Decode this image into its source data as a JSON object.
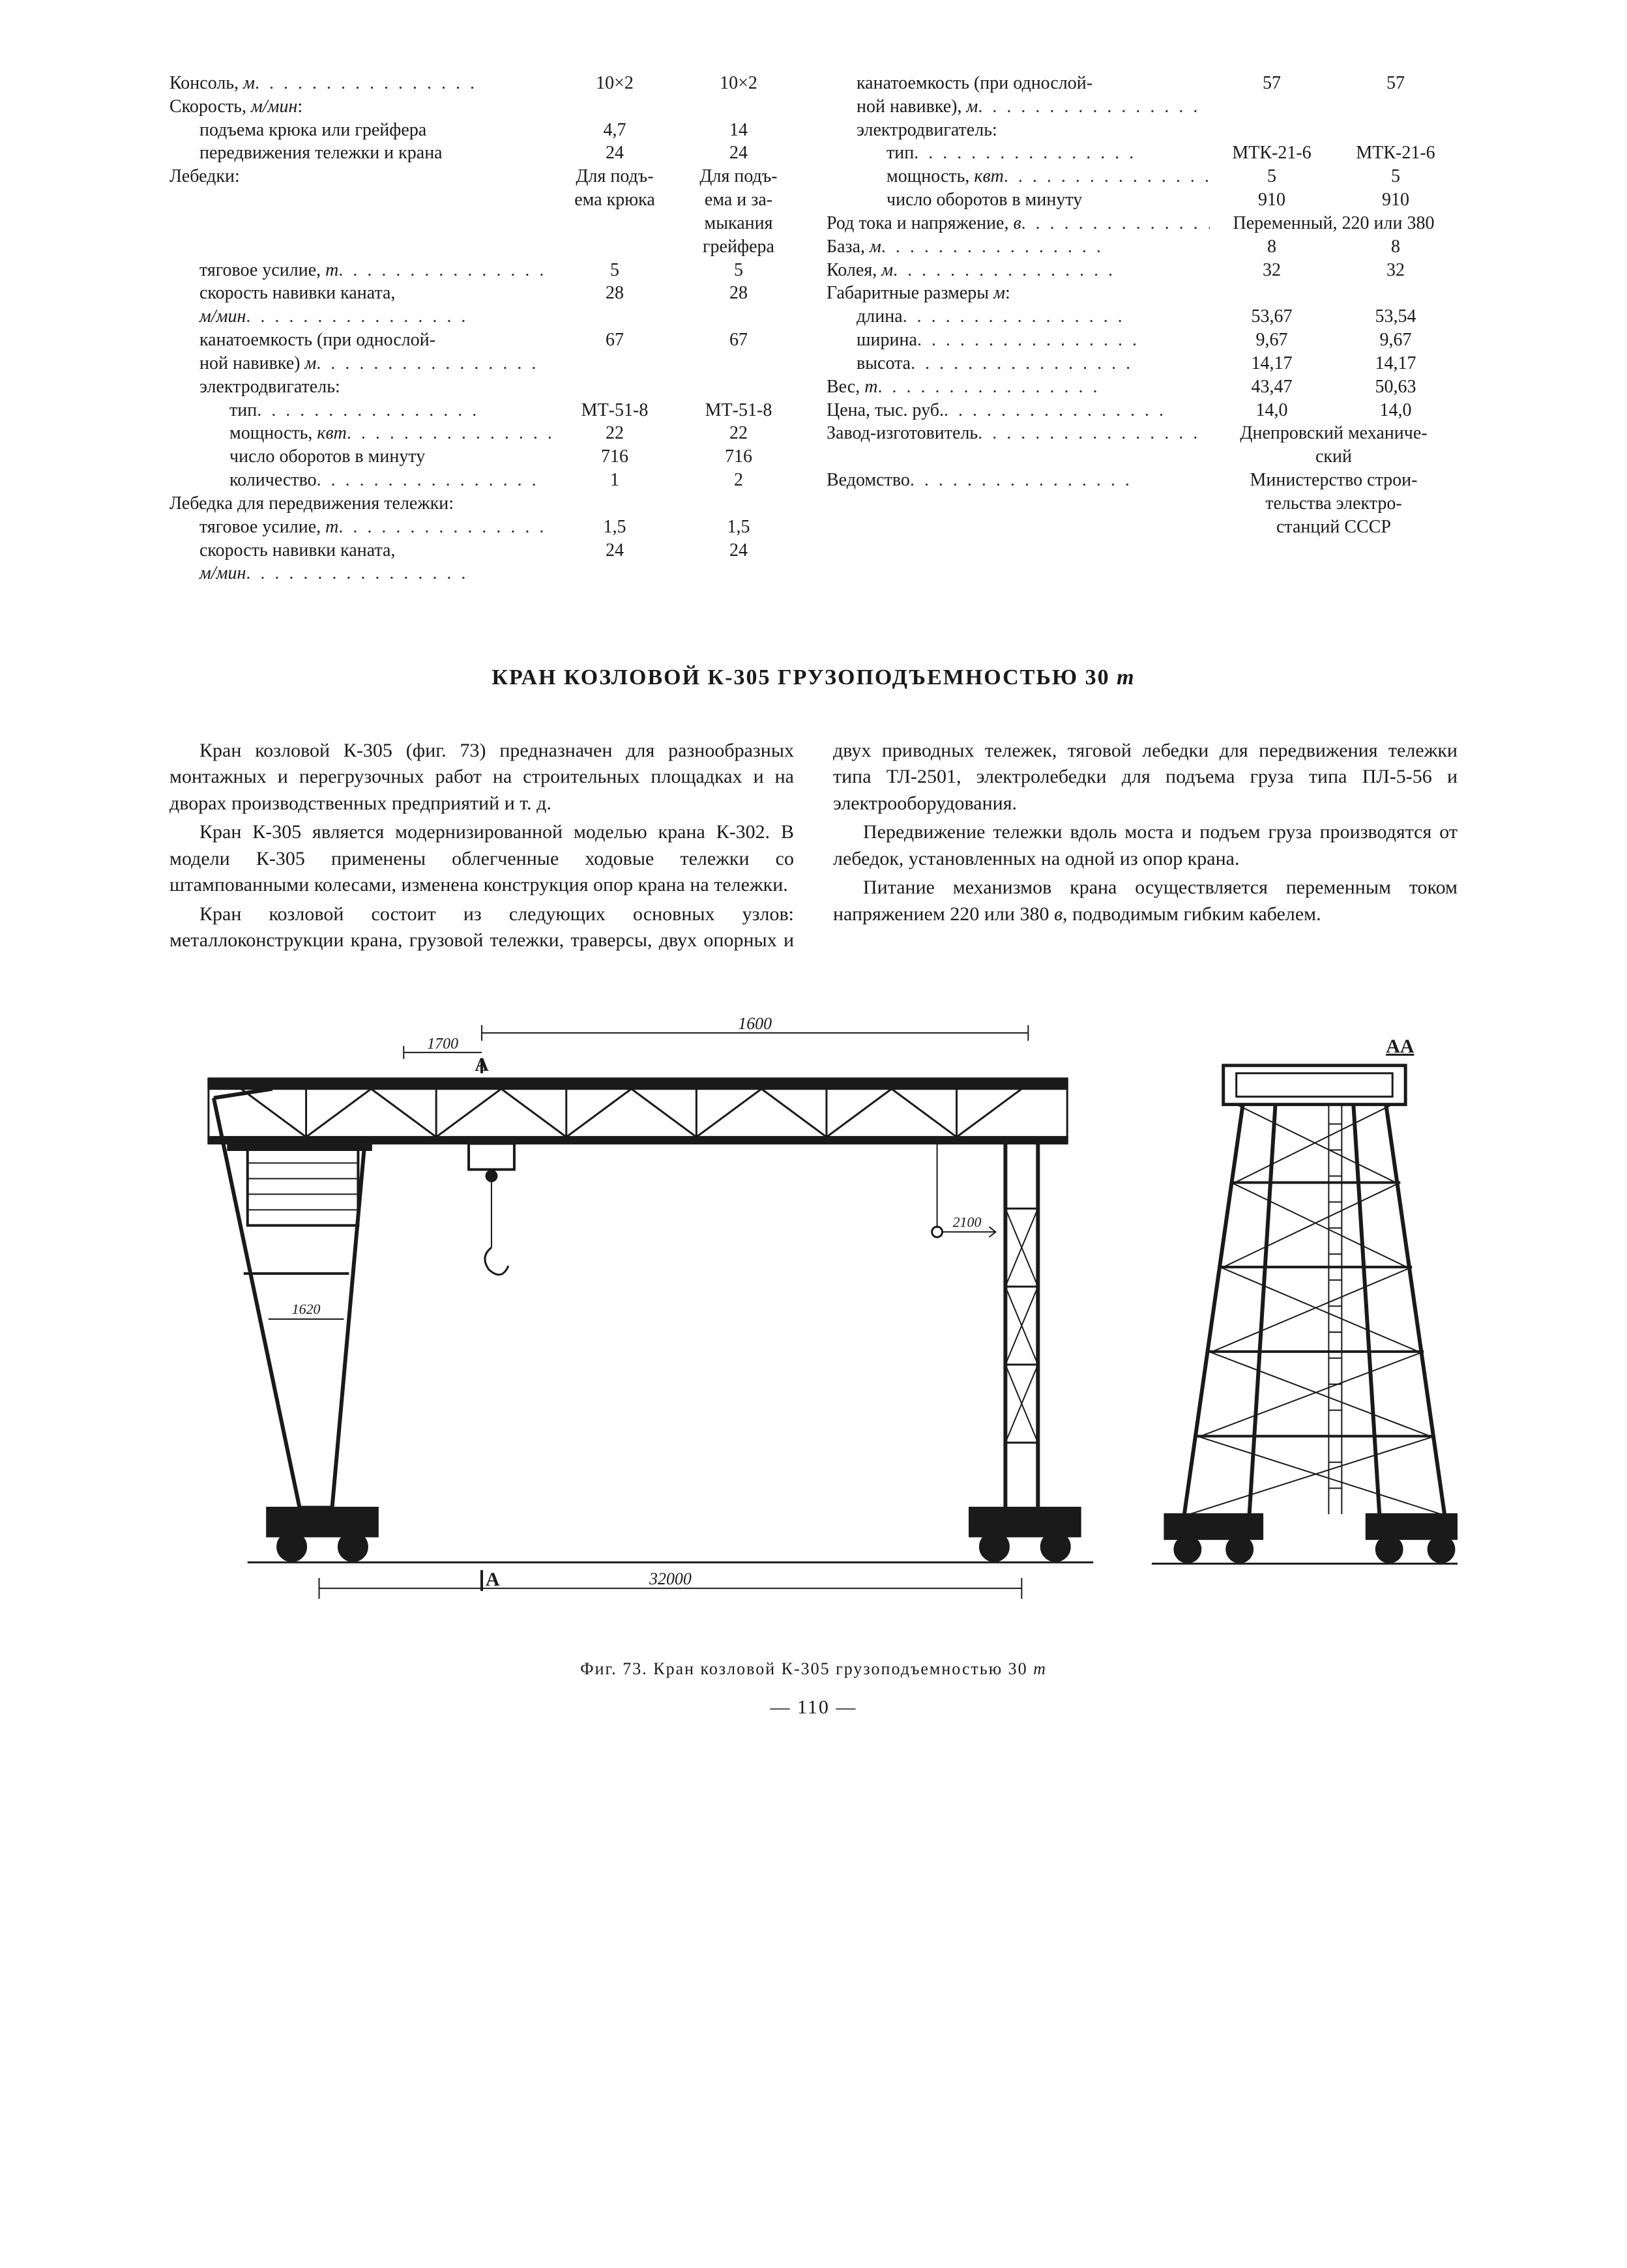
{
  "spec_left": {
    "rows": [
      {
        "label": "Консоль, <span class='ital'>м</span>",
        "v1": "10×2",
        "v2": "10×2",
        "ind": 0,
        "lead": true
      },
      {
        "label": "Скорость, <span class='ital'>м/мин</span>:",
        "v1": "",
        "v2": "",
        "ind": 0,
        "lead": false
      },
      {
        "label": "подъема крюка или грейфера",
        "v1": "4,7",
        "v2": "14",
        "ind": 1,
        "lead": false
      },
      {
        "label": "передвижения тележки и крана",
        "v1": "24",
        "v2": "24",
        "ind": 1,
        "lead": false
      },
      {
        "label": "Лебедки:",
        "v1": "Для подъ-<br>ема крюка",
        "v2": "Для подъ-<br>ема и за-<br>мыкания<br>грейфера",
        "ind": 0,
        "lead": false
      },
      {
        "label": "тяговое усилие, <span class='ital'>т</span>",
        "v1": "5",
        "v2": "5",
        "ind": 1,
        "lead": true
      },
      {
        "label": "скорость навивки каната,<br><span class='ital'>м/мин</span>",
        "v1": "28",
        "v2": "28",
        "ind": 1,
        "lead": true
      },
      {
        "label": "канатоемкость (при однослой-<br>ной навивке) <span class='ital'>м</span>",
        "v1": "67",
        "v2": "67",
        "ind": 1,
        "lead": true
      },
      {
        "label": "электродвигатель:",
        "v1": "",
        "v2": "",
        "ind": 1,
        "lead": false
      },
      {
        "label": "тип",
        "v1": "МТ-51-8",
        "v2": "МТ-51-8",
        "ind": 2,
        "lead": true
      },
      {
        "label": "мощность, <span class='ital'>квт</span>",
        "v1": "22",
        "v2": "22",
        "ind": 2,
        "lead": true
      },
      {
        "label": "число оборотов в минуту",
        "v1": "716",
        "v2": "716",
        "ind": 2,
        "lead": false
      },
      {
        "label": "количество",
        "v1": "1",
        "v2": "2",
        "ind": 2,
        "lead": true
      },
      {
        "label": "Лебедка для передвижения тележки:",
        "v1": "",
        "v2": "",
        "ind": 0,
        "lead": false
      },
      {
        "label": "тяговое усилие, <span class='ital'>т</span>",
        "v1": "1,5",
        "v2": "1,5",
        "ind": 1,
        "lead": true
      },
      {
        "label": "скорость навивки каната,<br><span class='ital'>м/мин</span>",
        "v1": "24",
        "v2": "24",
        "ind": 1,
        "lead": true
      }
    ]
  },
  "spec_right": {
    "rows": [
      {
        "label": "канатоемкость (при однослой-<br>ной навивке), <span class='ital'>м</span>",
        "v1": "57",
        "v2": "57",
        "ind": 1,
        "lead": true
      },
      {
        "label": "электродвигатель:",
        "v1": "",
        "v2": "",
        "ind": 1,
        "lead": false
      },
      {
        "label": "тип",
        "v1": "МТК-21-6",
        "v2": "МТК-21-6",
        "ind": 2,
        "lead": true
      },
      {
        "label": "мощность, <span class='ital'>квт</span>",
        "v1": "5",
        "v2": "5",
        "ind": 2,
        "lead": true
      },
      {
        "label": "число оборотов в минуту",
        "v1": "910",
        "v2": "910",
        "ind": 2,
        "lead": false
      },
      {
        "label": "Род тока и напряжение, <span class='ital'>в</span>",
        "wide": "Переменный, 220 или 380",
        "ind": 0,
        "lead": true
      },
      {
        "label": "База, <span class='ital'>м</span>",
        "v1": "8",
        "v2": "8",
        "ind": 0,
        "lead": true
      },
      {
        "label": "Колея, <span class='ital'>м</span>",
        "v1": "32",
        "v2": "32",
        "ind": 0,
        "lead": true
      },
      {
        "label": "Габаритные размеры <span class='ital'>м</span>:",
        "v1": "",
        "v2": "",
        "ind": 0,
        "lead": false
      },
      {
        "label": "длина",
        "v1": "53,67",
        "v2": "53,54",
        "ind": 1,
        "lead": true
      },
      {
        "label": "ширина",
        "v1": "9,67",
        "v2": "9,67",
        "ind": 1,
        "lead": true
      },
      {
        "label": "высота",
        "v1": "14,17",
        "v2": "14,17",
        "ind": 1,
        "lead": true
      },
      {
        "label": "Вес, <span class='ital'>т</span>",
        "v1": "43,47",
        "v2": "50,63",
        "ind": 0,
        "lead": true
      },
      {
        "label": "Цена, тыс. руб.",
        "v1": "14,0",
        "v2": "14,0",
        "ind": 0,
        "lead": true
      },
      {
        "label": "Завод-изготовитель",
        "wide": "Днепровский механиче-<br>ский",
        "ind": 0,
        "lead": true
      },
      {
        "label": "Ведомство",
        "wide": "Министерство строи-<br>тельства электро-<br>станций СССР",
        "ind": 0,
        "lead": true
      }
    ]
  },
  "title": "КРАН КОЗЛОВОЙ К-305  ГРУЗОПОДЪЕМНОСТЬЮ 30 <span class='ital'>т</span>",
  "body": [
    "Кран козловой К-305 (фиг. 73) предназначен для разнообразных монтажных и перегрузочных работ на строительных площадках и на дворах производственных предприятий и т. д.",
    "Кран К-305 является модернизированной моделью крана К-302. В модели К-305 применены облегченные ходовые тележки со штампованными колесами, изменена конструкция опор крана на тележки.",
    "Кран козловой состоит из следующих основных узлов: металлоконструкции крана, грузовой тележки, траверсы, двух опорных и двух приводных тележек, тяговой лебедки для передвижения тележки типа ТЛ-2501, электролебедки для подъема груза типа ПЛ-5-56 и электрооборудования.",
    "Передвижение тележки вдоль моста и подъем груза производятся от лебедок, установленных на одной из опор крана.",
    "Питание механизмов крана осуществляется переменным током напряжением 220 или 380 <span class='ital'>в</span>, подводимым гибким кабелем."
  ],
  "figure": {
    "caption": "Фиг. 73. Кран козловой К-305 грузоподъемностью 30 <span class='ital'>т</span>",
    "labels": {
      "span_top": "1600",
      "span_bottom": "32000",
      "cantilever": "1700",
      "marker_A": "A",
      "marker_AA": "AA",
      "dim_left": "1620",
      "dim_right": "2100"
    },
    "colors": {
      "stroke": "#1a1a1a",
      "light": "#555"
    }
  },
  "page_number": "— 110 —"
}
